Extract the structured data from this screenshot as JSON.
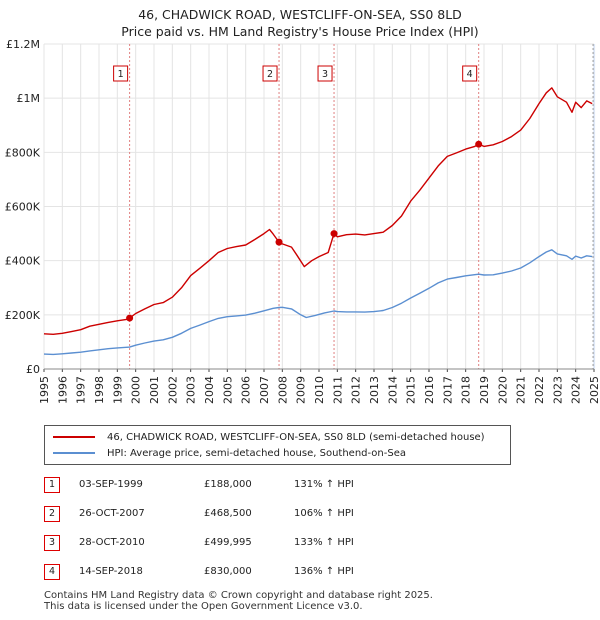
{
  "title_line1": "46, CHADWICK ROAD, WESTCLIFF-ON-SEA, SS0 8LD",
  "title_line2": "Price paid vs. HM Land Registry's House Price Index (HPI)",
  "colors": {
    "property": "#cc0000",
    "hpi": "#5b8fd1",
    "shade": "#dde6f5",
    "marker_box": "#cc0000"
  },
  "chart_data": {
    "type": "line",
    "title": "Price paid vs. HM Land Registry's House Price Index (HPI)",
    "xlabel": "",
    "ylabel": "",
    "xlim": [
      1995,
      2025
    ],
    "ylim": [
      0,
      1200000
    ],
    "x_ticks": [
      "1995",
      "1996",
      "1997",
      "1998",
      "1999",
      "2000",
      "2001",
      "2002",
      "2003",
      "2004",
      "2005",
      "2006",
      "2007",
      "2008",
      "2009",
      "2010",
      "2011",
      "2012",
      "2013",
      "2014",
      "2015",
      "2016",
      "2017",
      "2018",
      "2019",
      "2020",
      "2021",
      "2022",
      "2023",
      "2024",
      "2025"
    ],
    "y_ticks": [
      {
        "value": 0,
        "label": "£0"
      },
      {
        "value": 200000,
        "label": "£200K"
      },
      {
        "value": 400000,
        "label": "£400K"
      },
      {
        "value": 600000,
        "label": "£600K"
      },
      {
        "value": 800000,
        "label": "£800K"
      },
      {
        "value": 1000000,
        "label": "£1M"
      },
      {
        "value": 1200000,
        "label": "£1.2M"
      }
    ],
    "series": [
      {
        "name": "46, CHADWICK ROAD, WESTCLIFF-ON-SEA, SS0 8LD (semi-detached house)",
        "color": "#cc0000",
        "points": [
          [
            1995.0,
            130000
          ],
          [
            1995.5,
            128000
          ],
          [
            1996.0,
            132000
          ],
          [
            1996.5,
            138000
          ],
          [
            1997.0,
            145000
          ],
          [
            1997.5,
            158000
          ],
          [
            1998.0,
            165000
          ],
          [
            1998.5,
            172000
          ],
          [
            1999.0,
            178000
          ],
          [
            1999.5,
            183000
          ],
          [
            1999.67,
            188000
          ],
          [
            2000.0,
            205000
          ],
          [
            2000.5,
            222000
          ],
          [
            2001.0,
            238000
          ],
          [
            2001.5,
            245000
          ],
          [
            2002.0,
            265000
          ],
          [
            2002.5,
            300000
          ],
          [
            2003.0,
            345000
          ],
          [
            2003.5,
            372000
          ],
          [
            2004.0,
            400000
          ],
          [
            2004.5,
            430000
          ],
          [
            2005.0,
            445000
          ],
          [
            2005.5,
            452000
          ],
          [
            2006.0,
            458000
          ],
          [
            2006.5,
            478000
          ],
          [
            2007.0,
            500000
          ],
          [
            2007.3,
            515000
          ],
          [
            2007.5,
            498000
          ],
          [
            2007.82,
            468500
          ],
          [
            2008.0,
            462000
          ],
          [
            2008.5,
            450000
          ],
          [
            2008.8,
            420000
          ],
          [
            2009.2,
            378000
          ],
          [
            2009.6,
            400000
          ],
          [
            2010.0,
            415000
          ],
          [
            2010.5,
            430000
          ],
          [
            2010.82,
            499995
          ],
          [
            2011.0,
            488000
          ],
          [
            2011.5,
            496000
          ],
          [
            2012.0,
            498000
          ],
          [
            2012.5,
            495000
          ],
          [
            2013.0,
            500000
          ],
          [
            2013.5,
            505000
          ],
          [
            2014.0,
            530000
          ],
          [
            2014.5,
            565000
          ],
          [
            2015.0,
            620000
          ],
          [
            2015.5,
            660000
          ],
          [
            2016.0,
            705000
          ],
          [
            2016.5,
            750000
          ],
          [
            2017.0,
            785000
          ],
          [
            2017.5,
            798000
          ],
          [
            2018.0,
            812000
          ],
          [
            2018.5,
            822000
          ],
          [
            2018.71,
            830000
          ],
          [
            2019.0,
            822000
          ],
          [
            2019.5,
            828000
          ],
          [
            2020.0,
            840000
          ],
          [
            2020.5,
            858000
          ],
          [
            2021.0,
            882000
          ],
          [
            2021.5,
            925000
          ],
          [
            2022.0,
            980000
          ],
          [
            2022.4,
            1020000
          ],
          [
            2022.7,
            1038000
          ],
          [
            2023.0,
            1005000
          ],
          [
            2023.5,
            985000
          ],
          [
            2023.8,
            948000
          ],
          [
            2024.0,
            985000
          ],
          [
            2024.3,
            965000
          ],
          [
            2024.6,
            990000
          ],
          [
            2024.9,
            980000
          ]
        ]
      },
      {
        "name": "HPI: Average price, semi-detached house, Southend-on-Sea",
        "color": "#5b8fd1",
        "points": [
          [
            1995.0,
            55000
          ],
          [
            1995.5,
            54000
          ],
          [
            1996.0,
            56000
          ],
          [
            1996.5,
            59000
          ],
          [
            1997.0,
            62000
          ],
          [
            1997.5,
            67000
          ],
          [
            1998.0,
            71000
          ],
          [
            1998.5,
            75000
          ],
          [
            1999.0,
            78000
          ],
          [
            1999.67,
            81000
          ],
          [
            2000.0,
            88000
          ],
          [
            2000.5,
            96000
          ],
          [
            2001.0,
            103000
          ],
          [
            2001.5,
            108000
          ],
          [
            2002.0,
            117000
          ],
          [
            2002.5,
            132000
          ],
          [
            2003.0,
            150000
          ],
          [
            2003.5,
            162000
          ],
          [
            2004.0,
            175000
          ],
          [
            2004.5,
            187000
          ],
          [
            2005.0,
            193000
          ],
          [
            2005.5,
            196000
          ],
          [
            2006.0,
            199000
          ],
          [
            2006.5,
            206000
          ],
          [
            2007.0,
            215000
          ],
          [
            2007.5,
            224000
          ],
          [
            2007.82,
            227000
          ],
          [
            2008.0,
            228000
          ],
          [
            2008.5,
            222000
          ],
          [
            2009.0,
            200000
          ],
          [
            2009.3,
            190000
          ],
          [
            2009.8,
            198000
          ],
          [
            2010.3,
            207000
          ],
          [
            2010.82,
            214000
          ],
          [
            2011.0,
            212000
          ],
          [
            2011.5,
            211000
          ],
          [
            2012.0,
            211000
          ],
          [
            2012.5,
            210000
          ],
          [
            2013.0,
            212000
          ],
          [
            2013.5,
            216000
          ],
          [
            2014.0,
            227000
          ],
          [
            2014.5,
            243000
          ],
          [
            2015.0,
            262000
          ],
          [
            2015.5,
            280000
          ],
          [
            2016.0,
            298000
          ],
          [
            2016.5,
            318000
          ],
          [
            2017.0,
            332000
          ],
          [
            2017.5,
            338000
          ],
          [
            2018.0,
            344000
          ],
          [
            2018.71,
            350000
          ],
          [
            2019.0,
            347000
          ],
          [
            2019.5,
            348000
          ],
          [
            2020.0,
            354000
          ],
          [
            2020.5,
            362000
          ],
          [
            2021.0,
            373000
          ],
          [
            2021.5,
            392000
          ],
          [
            2022.0,
            415000
          ],
          [
            2022.4,
            432000
          ],
          [
            2022.7,
            440000
          ],
          [
            2023.0,
            425000
          ],
          [
            2023.5,
            418000
          ],
          [
            2023.8,
            405000
          ],
          [
            2024.0,
            417000
          ],
          [
            2024.3,
            410000
          ],
          [
            2024.6,
            418000
          ],
          [
            2024.9,
            415000
          ]
        ]
      }
    ],
    "sales": [
      {
        "id": "1",
        "date": "03-SEP-1999",
        "x": 1999.67,
        "price": 188000,
        "price_label": "£188,000",
        "hpi_label": "131% ↑ HPI"
      },
      {
        "id": "2",
        "date": "26-OCT-2007",
        "x": 2007.82,
        "price": 468500,
        "price_label": "£468,500",
        "hpi_label": "106% ↑ HPI"
      },
      {
        "id": "3",
        "date": "28-OCT-2010",
        "x": 2010.82,
        "price": 499995,
        "price_label": "£499,995",
        "hpi_label": "133% ↑ HPI"
      },
      {
        "id": "4",
        "date": "14-SEP-2018",
        "x": 2018.71,
        "price": 830000,
        "price_label": "£830,000",
        "hpi_label": "136% ↑ HPI"
      }
    ],
    "shaded_range": [
      2024.95,
      2025
    ]
  },
  "legend": {
    "property_label": "46, CHADWICK ROAD, WESTCLIFF-ON-SEA, SS0 8LD (semi-detached house)",
    "hpi_label": "HPI: Average price, semi-detached house, Southend-on-Sea"
  },
  "footer_line1": "Contains HM Land Registry data © Crown copyright and database right 2025.",
  "footer_line2": "This data is licensed under the Open Government Licence v3.0."
}
